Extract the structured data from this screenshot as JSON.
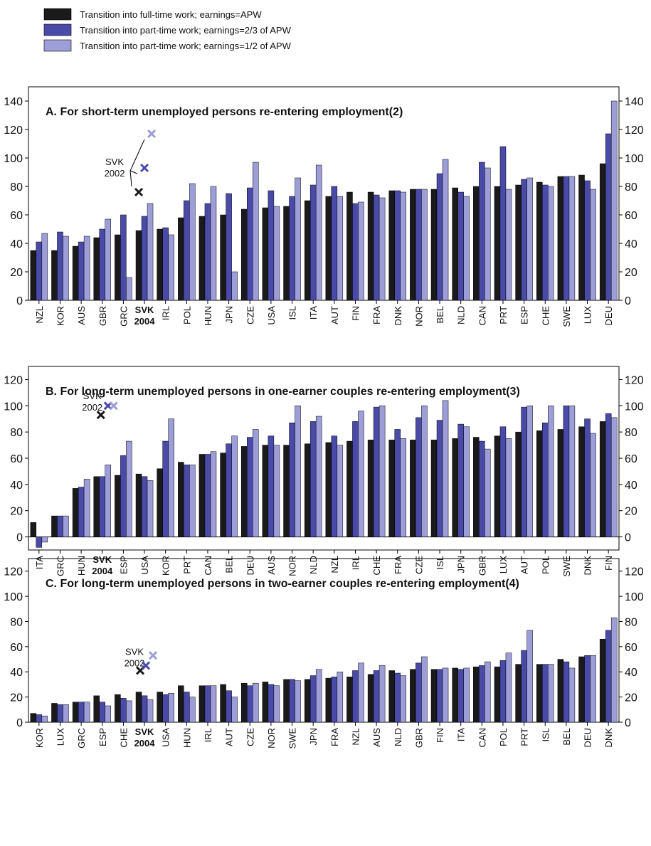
{
  "legend": [
    {
      "name": "Transition into full-time work; earnings=APW",
      "color": "#1a1a1a"
    },
    {
      "name": "Transition into part-time work; earnings=2/3 of APW",
      "color": "#4a4aa8"
    },
    {
      "name": "Transition into part-time work; earnings=1/2 of APW",
      "color": "#9d9dd8"
    }
  ],
  "chart_data": [
    {
      "type": "bar",
      "title": "A.  For short-term unemployed persons re-entering employment(2)",
      "categories": [
        "NZL",
        "KOR",
        "AUS",
        "GBR",
        "GRC",
        "SVK",
        "IRL",
        "POL",
        "HUN",
        "JPN",
        "CZE",
        "USA",
        "ISL",
        "ITA",
        "AUT",
        "FIN",
        "FRA",
        "DNK",
        "NOR",
        "BEL",
        "NLD",
        "CAN",
        "PRT",
        "ESP",
        "CHE",
        "SWE",
        "LUX",
        "DEU"
      ],
      "highlight": {
        "index": 5,
        "sublabel": "2004"
      },
      "series": [
        {
          "values": [
            35,
            35,
            38,
            44,
            46,
            49,
            50,
            58,
            59,
            60,
            64,
            65,
            66,
            70,
            73,
            76,
            76,
            77,
            78,
            78,
            79,
            80,
            80,
            81,
            83,
            87,
            88,
            96
          ]
        },
        {
          "values": [
            41,
            48,
            41,
            50,
            60,
            59,
            51,
            70,
            68,
            75,
            79,
            77,
            73,
            81,
            80,
            68,
            74,
            77,
            78,
            89,
            76,
            97,
            108,
            85,
            81,
            87,
            84,
            117
          ]
        },
        {
          "values": [
            47,
            45,
            45,
            57,
            16,
            68,
            46,
            82,
            80,
            20,
            97,
            66,
            86,
            95,
            73,
            69,
            72,
            76,
            78,
            99,
            73,
            93,
            78,
            86,
            80,
            87,
            78,
            140
          ]
        }
      ],
      "svk_2002": {
        "label_top": "SVK",
        "label_bottom": "2002",
        "values": [
          76,
          93,
          117
        ]
      },
      "ylim": [
        0,
        150
      ],
      "yticks": [
        0,
        20,
        40,
        60,
        80,
        100,
        120,
        140
      ]
    },
    {
      "type": "bar",
      "title": "B. For long-term unemployed persons in one-earner couples re-entering employment(3)",
      "categories": [
        "ITA",
        "GRC",
        "HUN",
        "SVK",
        "ESP",
        "USA",
        "KOR",
        "PRT",
        "CAN",
        "BEL",
        "DEU",
        "AUS",
        "NOR",
        "NLD",
        "NZL",
        "IRL",
        "CHE",
        "FRA",
        "CZE",
        "ISL",
        "JPN",
        "GBR",
        "LUX",
        "AUT",
        "POL",
        "SWE",
        "DNK",
        "FIN"
      ],
      "highlight": {
        "index": 3,
        "sublabel": "2004"
      },
      "series": [
        {
          "values": [
            11,
            16,
            37,
            46,
            47,
            48,
            52,
            57,
            63,
            64,
            69,
            70,
            70,
            71,
            72,
            73,
            74,
            74,
            74,
            74,
            75,
            76,
            77,
            80,
            81,
            82,
            84,
            88
          ]
        },
        {
          "values": [
            -8,
            16,
            38,
            46,
            62,
            46,
            73,
            55,
            63,
            71,
            76,
            77,
            87,
            88,
            77,
            88,
            99,
            82,
            91,
            89,
            86,
            73,
            84,
            99,
            87,
            100,
            90,
            94
          ]
        },
        {
          "values": [
            -4,
            16,
            44,
            55,
            73,
            43,
            90,
            55,
            65,
            77,
            82,
            70,
            100,
            92,
            70,
            96,
            100,
            75,
            100,
            104,
            84,
            67,
            75,
            100,
            100,
            100,
            79,
            91
          ]
        }
      ],
      "svk_2002": {
        "label_top": "SVK",
        "label_bottom": "2002",
        "values": [
          93,
          100,
          100
        ]
      },
      "ylim": [
        -10,
        130
      ],
      "yticks": [
        0,
        20,
        40,
        60,
        80,
        100,
        120
      ]
    },
    {
      "type": "bar",
      "title": "C. For long-term unemployed persons in two-earner couples re-entering employment(4)",
      "categories": [
        "KOR",
        "LUX",
        "GRC",
        "ESP",
        "CHE",
        "SVK",
        "USA",
        "HUN",
        "IRL",
        "AUT",
        "CZE",
        "NOR",
        "SWE",
        "JPN",
        "FRA",
        "NZL",
        "AUS",
        "NLD",
        "GBR",
        "FIN",
        "ITA",
        "CAN",
        "POL",
        "PRT",
        "ISL",
        "BEL",
        "DEU",
        "DNK"
      ],
      "highlight": {
        "index": 5,
        "sublabel": "2004"
      },
      "series": [
        {
          "values": [
            7,
            15,
            16,
            21,
            22,
            24,
            24,
            29,
            29,
            30,
            31,
            32,
            34,
            34,
            35,
            36,
            38,
            41,
            42,
            42,
            43,
            44,
            44,
            46,
            46,
            50,
            52,
            66
          ]
        },
        {
          "values": [
            6,
            14,
            16,
            16,
            19,
            21,
            22,
            24,
            29,
            25,
            29,
            30,
            34,
            37,
            36,
            41,
            41,
            39,
            47,
            42,
            42,
            45,
            49,
            57,
            46,
            48,
            53,
            73
          ]
        },
        {
          "values": [
            5,
            14,
            16,
            13,
            17,
            18,
            23,
            20,
            29,
            20,
            31,
            29,
            33,
            42,
            40,
            47,
            45,
            37,
            52,
            43,
            43,
            48,
            55,
            73,
            46,
            43,
            53,
            83
          ]
        }
      ],
      "svk_2002": {
        "label_top": "SVK",
        "label_bottom": "2002",
        "values": [
          41,
          45,
          53
        ]
      },
      "ylim": [
        0,
        130
      ],
      "yticks": [
        0,
        20,
        40,
        60,
        80,
        100,
        120
      ]
    }
  ]
}
